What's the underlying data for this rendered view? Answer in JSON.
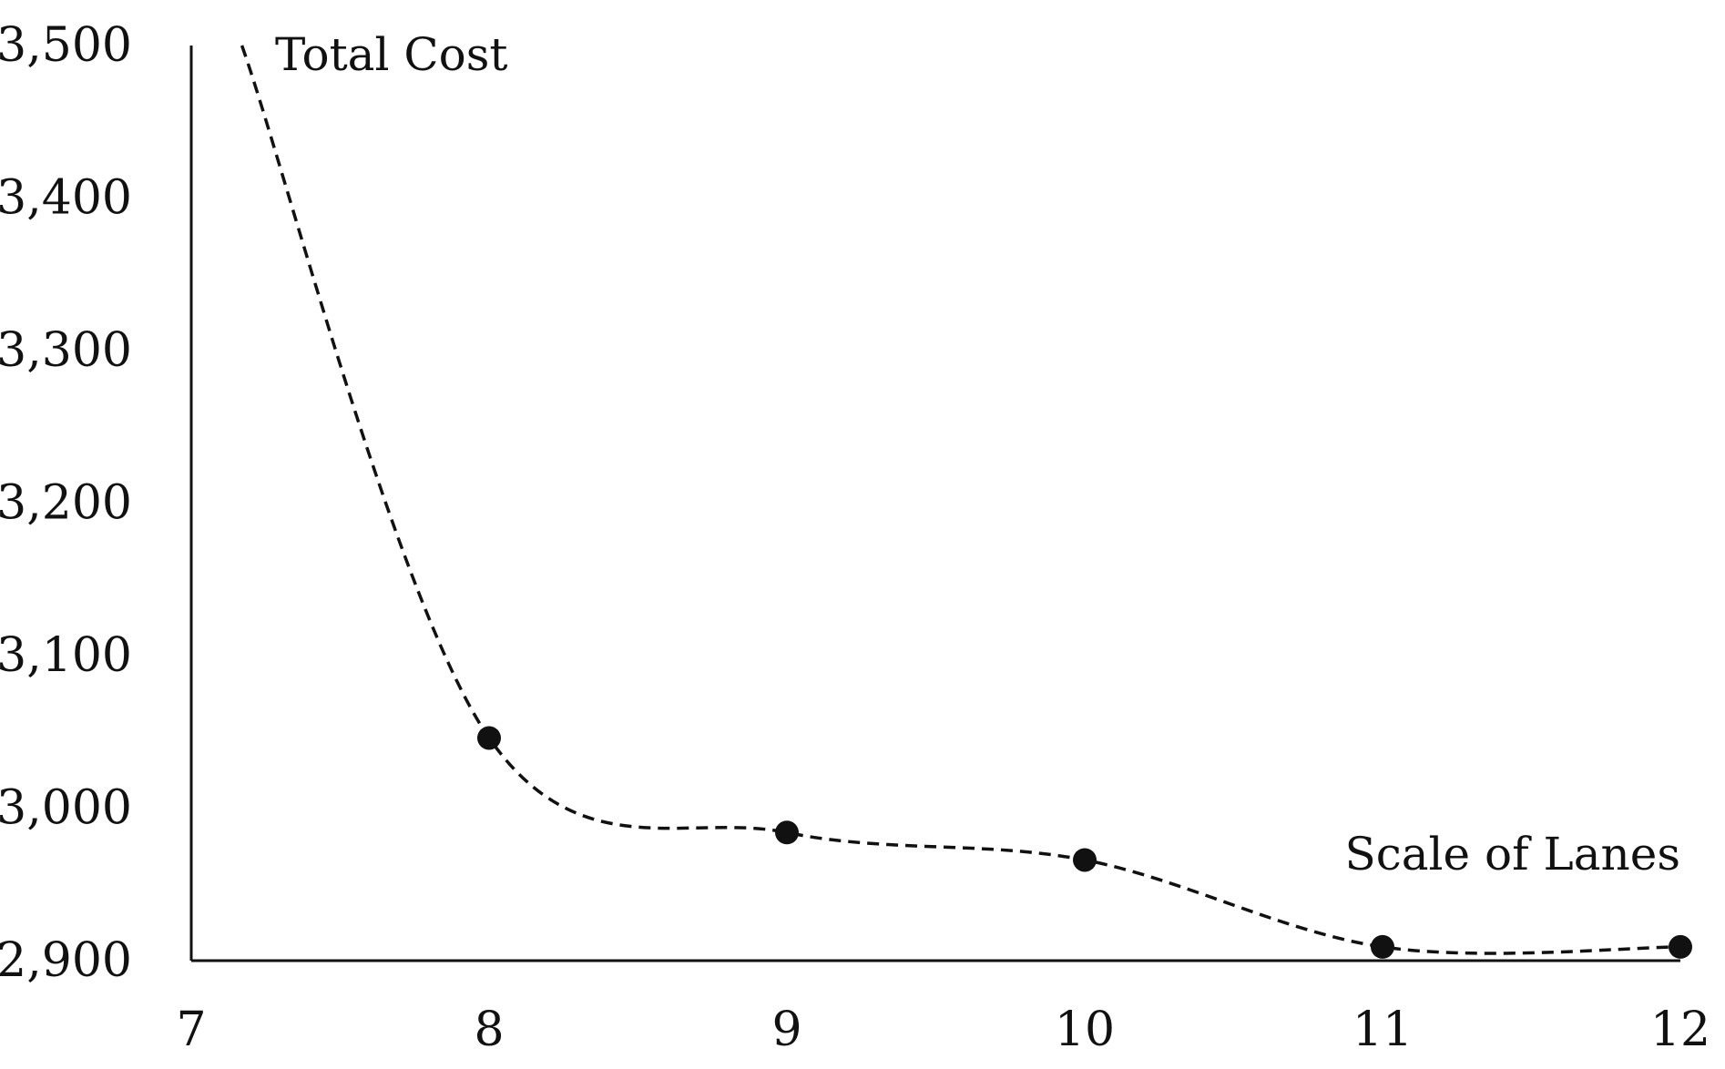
{
  "chart_data": {
    "type": "line",
    "ylabel": "Total Cost",
    "xlabel": "Scale of Lanes",
    "xlim": [
      7,
      12
    ],
    "ylim": [
      2900,
      3500
    ],
    "x_ticks": [
      7,
      8,
      9,
      10,
      11,
      12
    ],
    "x_tick_labels": [
      "7",
      "8",
      "9",
      "10",
      "11",
      "12"
    ],
    "y_ticks": [
      2900,
      3000,
      3100,
      3200,
      3300,
      3400,
      3500
    ],
    "y_tick_labels": [
      "2,900",
      "3,000",
      "3,100",
      "3,200",
      "3,300",
      "3,400",
      "3,500"
    ],
    "grid": false,
    "line_style": "dashed",
    "smooth": true,
    "marker": "filled-circle",
    "line_color": "#111111",
    "series": [
      {
        "points": [
          {
            "x": 8,
            "y": 3046
          },
          {
            "x": 9,
            "y": 2984
          },
          {
            "x": 10,
            "y": 2966
          },
          {
            "x": 11,
            "y": 2909
          },
          {
            "x": 12,
            "y": 2909
          }
        ],
        "curve_start": {
          "x": 7.17,
          "y": 3500
        }
      }
    ]
  }
}
